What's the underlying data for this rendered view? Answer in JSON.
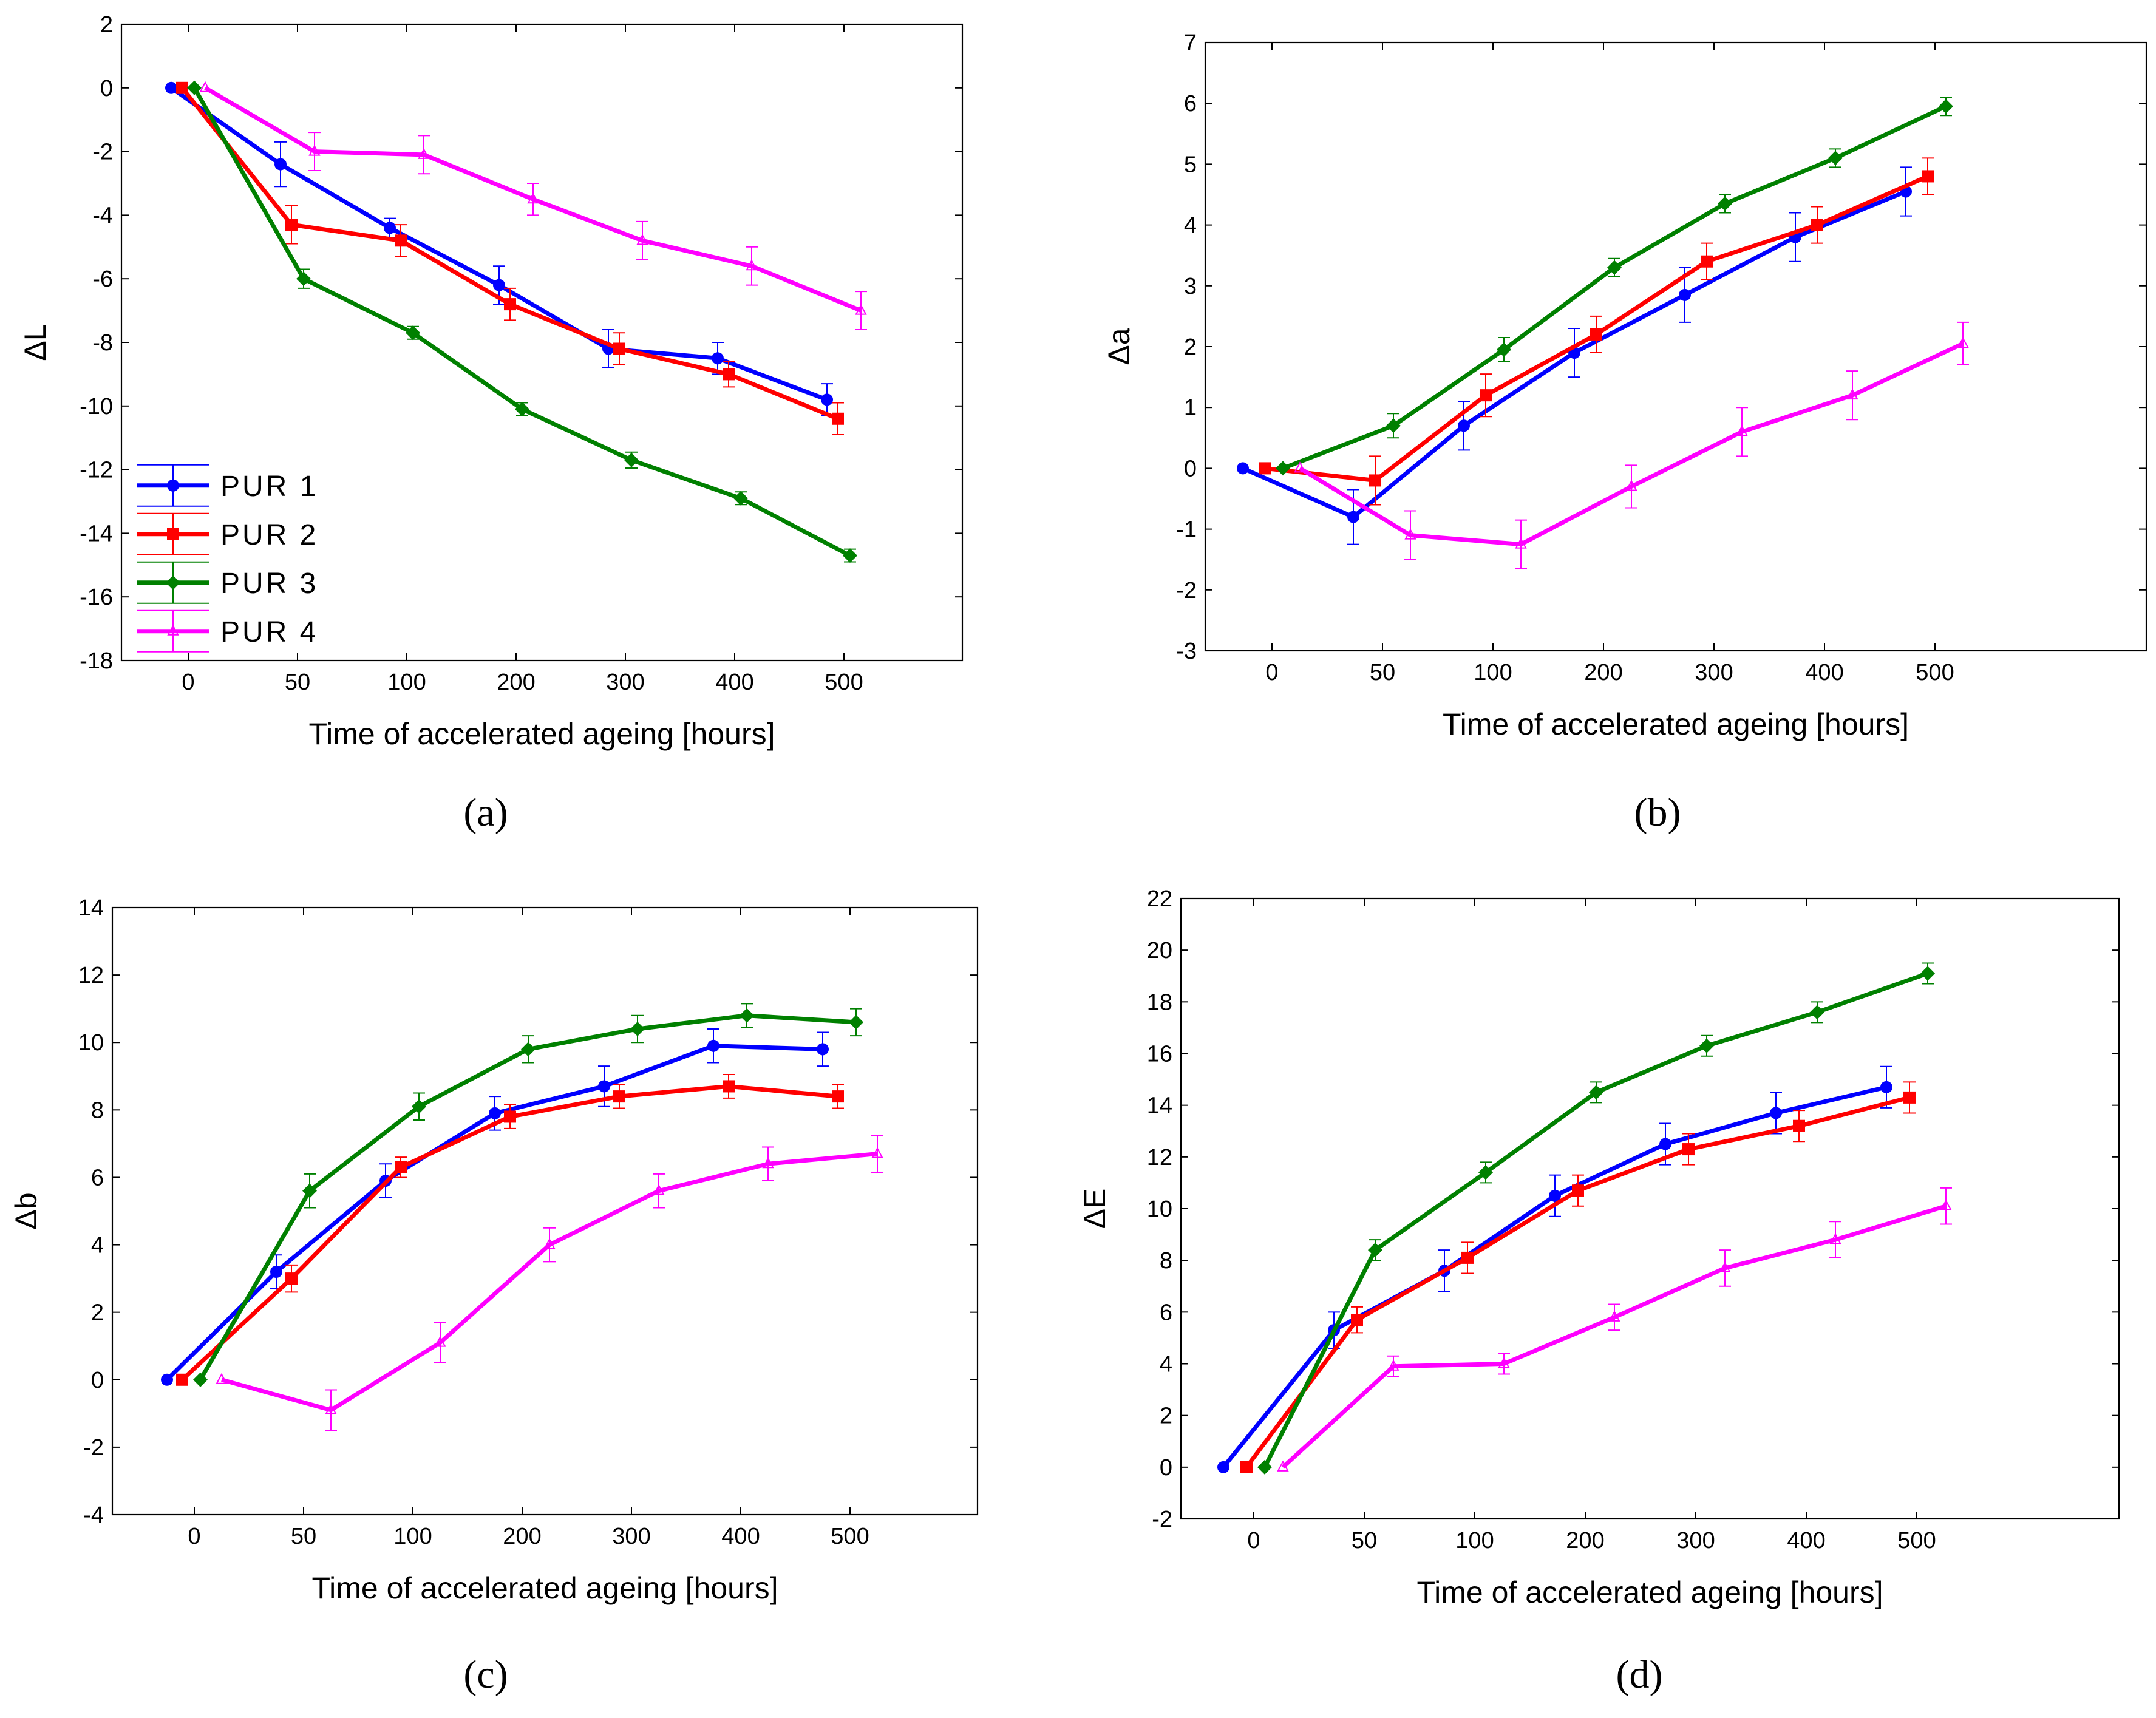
{
  "series_styles": [
    {
      "name": "PUR 1",
      "color": "#0000ff",
      "marker": "circle"
    },
    {
      "name": "PUR 2",
      "color": "#ff0000",
      "marker": "square"
    },
    {
      "name": "PUR 3",
      "color": "#008000",
      "marker": "diamond"
    },
    {
      "name": "PUR 4",
      "color": "#ff00ff",
      "marker": "triangle"
    }
  ],
  "chart_data": [
    {
      "type": "line",
      "panel": "a",
      "ylabel": "ΔL",
      "xlabel": "Time of accelerated ageing [hours]",
      "ylim": [
        -18,
        2
      ],
      "yticks": [
        2,
        0,
        -2,
        -4,
        -6,
        -8,
        -10,
        -12,
        -14,
        -16,
        -18
      ],
      "x_categories": [
        "0",
        "50",
        "100",
        "200",
        "300",
        "400",
        "500"
      ],
      "legend": {
        "position": "bottom-left",
        "entries": [
          "PUR 1",
          "PUR 2",
          "PUR 3",
          "PUR 4"
        ]
      },
      "series": [
        {
          "name": "PUR 1",
          "values": [
            0,
            -2.4,
            -4.4,
            -6.2,
            -8.2,
            -8.5,
            -9.8
          ],
          "errors": [
            0,
            0.7,
            0.3,
            0.6,
            0.6,
            0.5,
            0.5
          ]
        },
        {
          "name": "PUR 2",
          "values": [
            0,
            -4.3,
            -4.8,
            -6.8,
            -8.2,
            -9.0,
            -10.4
          ],
          "errors": [
            0,
            0.6,
            0.5,
            0.5,
            0.5,
            0.4,
            0.5
          ]
        },
        {
          "name": "PUR 3",
          "values": [
            0,
            -6.0,
            -7.7,
            -10.1,
            -11.7,
            -12.9,
            -14.7
          ],
          "errors": [
            0,
            0.3,
            0.2,
            0.2,
            0.25,
            0.2,
            0.2
          ]
        },
        {
          "name": "PUR 4",
          "values": [
            0,
            -2.0,
            -2.1,
            -3.5,
            -4.8,
            -5.6,
            -7.0
          ],
          "errors": [
            0,
            0.6,
            0.6,
            0.5,
            0.6,
            0.6,
            0.6
          ]
        }
      ]
    },
    {
      "type": "line",
      "panel": "b",
      "ylabel": "Δa",
      "xlabel": "Time of accelerated ageing [hours]",
      "ylim": [
        -3,
        7
      ],
      "yticks": [
        7,
        6,
        5,
        4,
        3,
        2,
        1,
        0,
        -1,
        -2,
        -3
      ],
      "x_categories": [
        "0",
        "50",
        "100",
        "200",
        "300",
        "400",
        "500"
      ],
      "series": [
        {
          "name": "PUR 1",
          "values": [
            0,
            -0.8,
            0.7,
            1.9,
            2.85,
            3.8,
            4.55
          ],
          "errors": [
            0,
            0.45,
            0.4,
            0.4,
            0.45,
            0.4,
            0.4
          ]
        },
        {
          "name": "PUR 2",
          "values": [
            0,
            -0.2,
            1.2,
            2.2,
            3.4,
            4.0,
            4.8
          ],
          "errors": [
            0,
            0.4,
            0.35,
            0.3,
            0.3,
            0.3,
            0.3
          ]
        },
        {
          "name": "PUR 3",
          "values": [
            0,
            0.7,
            1.95,
            3.3,
            4.35,
            5.1,
            5.95
          ],
          "errors": [
            0,
            0.2,
            0.2,
            0.15,
            0.15,
            0.15,
            0.15
          ]
        },
        {
          "name": "PUR 4",
          "values": [
            0,
            -1.1,
            -1.25,
            -0.3,
            0.6,
            1.2,
            2.05
          ],
          "errors": [
            0,
            0.4,
            0.4,
            0.35,
            0.4,
            0.4,
            0.35
          ]
        }
      ]
    },
    {
      "type": "line",
      "panel": "c",
      "ylabel": "Δb",
      "xlabel": "Time of accelerated ageing [hours]",
      "ylim": [
        -4,
        14
      ],
      "yticks": [
        14,
        12,
        10,
        8,
        6,
        4,
        2,
        0,
        -2,
        -4
      ],
      "x_categories": [
        "0",
        "50",
        "100",
        "200",
        "300",
        "400",
        "500"
      ],
      "series": [
        {
          "name": "PUR 1",
          "values": [
            0,
            3.2,
            5.9,
            7.9,
            8.7,
            9.9,
            9.8
          ],
          "errors": [
            0,
            0.5,
            0.5,
            0.5,
            0.6,
            0.5,
            0.5
          ]
        },
        {
          "name": "PUR 2",
          "values": [
            0,
            3.0,
            6.3,
            7.8,
            8.4,
            8.7,
            8.4
          ],
          "errors": [
            0,
            0.4,
            0.3,
            0.35,
            0.35,
            0.35,
            0.35
          ]
        },
        {
          "name": "PUR 3",
          "values": [
            0,
            5.6,
            8.1,
            9.8,
            10.4,
            10.8,
            10.6
          ],
          "errors": [
            0,
            0.5,
            0.4,
            0.4,
            0.4,
            0.35,
            0.4
          ]
        },
        {
          "name": "PUR 4",
          "values": [
            0,
            -0.9,
            1.1,
            4.0,
            5.6,
            6.4,
            6.7
          ],
          "errors": [
            0,
            0.6,
            0.6,
            0.5,
            0.5,
            0.5,
            0.55
          ]
        }
      ]
    },
    {
      "type": "line",
      "panel": "d",
      "ylabel": "ΔE",
      "xlabel": "Time of accelerated ageing [hours]",
      "ylim": [
        -2,
        22
      ],
      "yticks": [
        22,
        20,
        18,
        16,
        14,
        12,
        10,
        8,
        6,
        4,
        2,
        0,
        -2
      ],
      "x_categories": [
        "0",
        "50",
        "100",
        "200",
        "300",
        "400",
        "500"
      ],
      "series": [
        {
          "name": "PUR 1",
          "values": [
            0,
            5.3,
            7.6,
            10.5,
            12.5,
            13.7,
            14.7
          ],
          "errors": [
            0,
            0.7,
            0.8,
            0.8,
            0.8,
            0.8,
            0.8
          ]
        },
        {
          "name": "PUR 2",
          "values": [
            0,
            5.7,
            8.1,
            10.7,
            12.3,
            13.2,
            14.3
          ],
          "errors": [
            0,
            0.5,
            0.6,
            0.6,
            0.6,
            0.6,
            0.6
          ]
        },
        {
          "name": "PUR 3",
          "values": [
            0,
            8.4,
            11.4,
            14.5,
            16.3,
            17.6,
            19.1
          ],
          "errors": [
            0,
            0.4,
            0.4,
            0.4,
            0.4,
            0.4,
            0.4
          ]
        },
        {
          "name": "PUR 4",
          "values": [
            0,
            3.9,
            4.0,
            5.8,
            7.7,
            8.8,
            10.1
          ],
          "errors": [
            0,
            0.4,
            0.4,
            0.5,
            0.7,
            0.7,
            0.7
          ]
        }
      ]
    }
  ],
  "panel_labels": [
    "(a)",
    "(b)",
    "(c)",
    "(d)"
  ]
}
